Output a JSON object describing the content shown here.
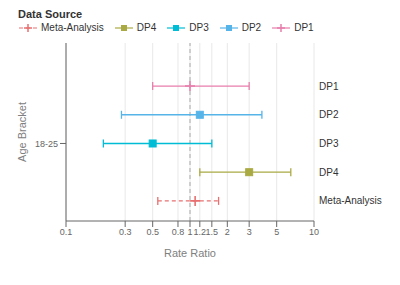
{
  "chart_data": {
    "type": "forest",
    "title": "Data Source",
    "x_label": "Rate Ratio",
    "y_label": "Age Bracket",
    "log": "x",
    "xlim": [
      0.1,
      10
    ],
    "ylim": [
      0.3,
      6.5
    ],
    "xticks": [
      0.1,
      0.3,
      0.5,
      0.8,
      1,
      1.2,
      1.5,
      2,
      3,
      5,
      10
    ],
    "yticks": [
      {
        "value": 3,
        "label": "18-25"
      }
    ],
    "grid": true,
    "legend": "top",
    "vline": 1.0,
    "legend_order": [
      "Meta-Analysis",
      "DP4",
      "DP3",
      "DP2",
      "DP1"
    ],
    "series": [
      {
        "name": "DP1",
        "y": 5,
        "center": 1.0,
        "low": 0.5,
        "high": 3.0,
        "color": "#E87EAC",
        "line_style": "solid",
        "marker": "plus"
      },
      {
        "name": "DP2",
        "y": 4,
        "center": 1.2,
        "low": 0.28,
        "high": 3.8,
        "color": "#56B4E9",
        "line_style": "solid",
        "marker": "square"
      },
      {
        "name": "DP3",
        "y": 3,
        "center": 0.5,
        "low": 0.2,
        "high": 1.5,
        "color": "#00BCD4",
        "line_style": "solid",
        "marker": "square"
      },
      {
        "name": "DP4",
        "y": 2,
        "center": 3.0,
        "low": 1.2,
        "high": 6.5,
        "color": "#AAAA44",
        "line_style": "solid",
        "marker": "square"
      },
      {
        "name": "Meta-Analysis",
        "y": 1,
        "center": 1.1,
        "low": 0.55,
        "high": 1.7,
        "color": "#E87070",
        "line_style": "dashed",
        "marker": "plus"
      }
    ]
  }
}
